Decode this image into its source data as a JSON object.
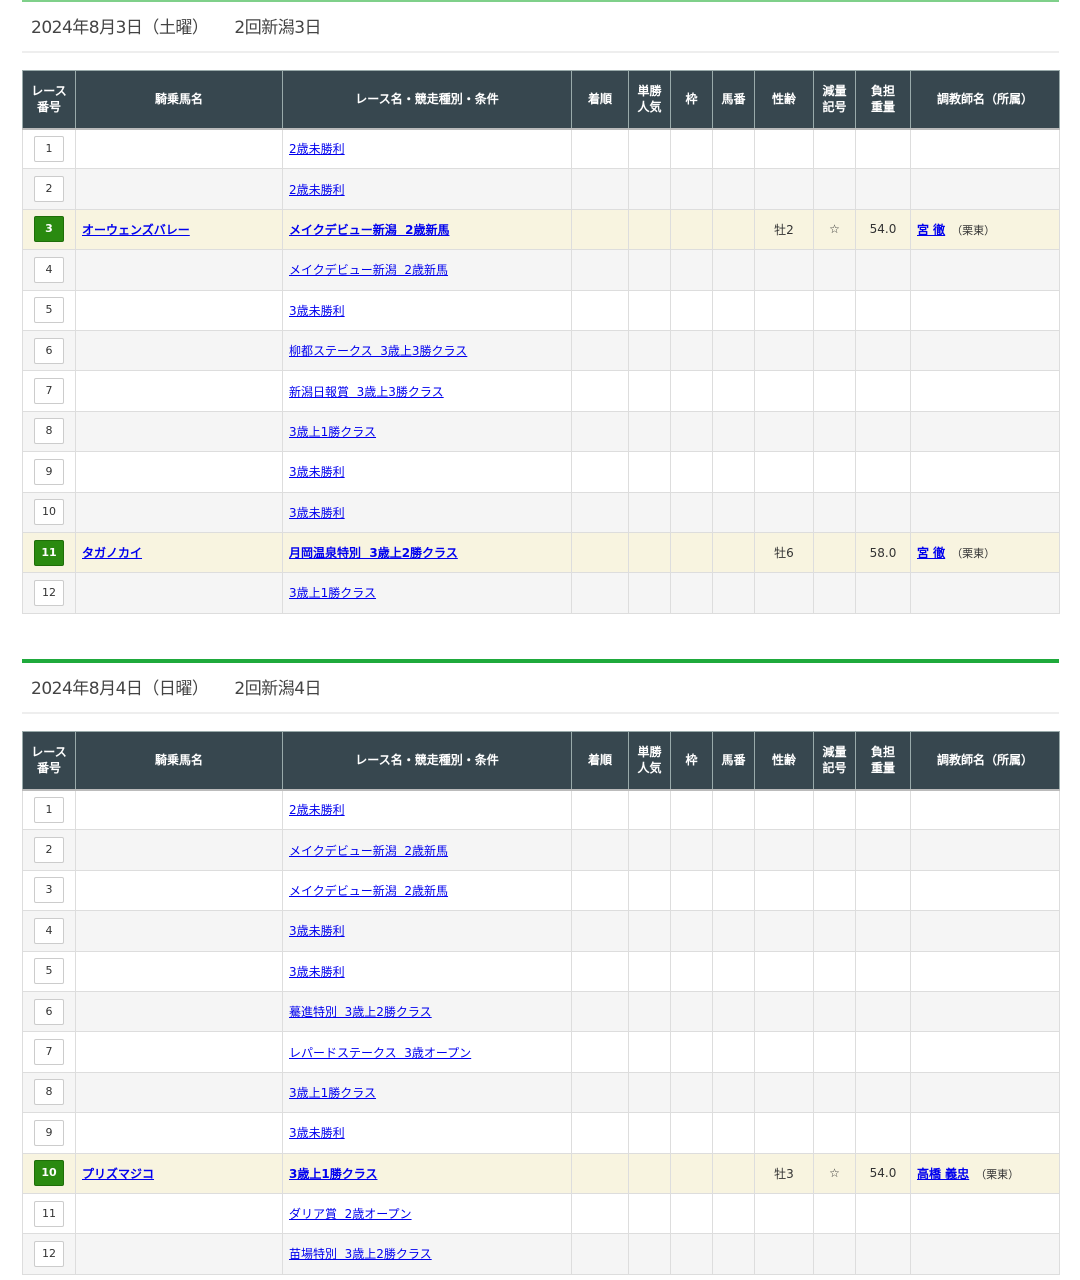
{
  "columns": [
    "レース\n番号",
    "騎乗馬名",
    "レース名・競走種別・条件",
    "着順",
    "単勝\n人気",
    "枠",
    "馬番",
    "性齢",
    "減量\n記号",
    "負担\n重量",
    "調教師名（所属）"
  ],
  "days": [
    {
      "date": "2024年8月3日（土曜）",
      "meeting": "2回新潟3日",
      "races": [
        {
          "no": "1",
          "race": "2歳未勝利"
        },
        {
          "no": "2",
          "race": "2歳未勝利"
        },
        {
          "no": "3",
          "horse": "オーウェンズバレー",
          "race": "メイクデビュー新潟  2歳新馬",
          "sexage": "牡2",
          "mark": "☆",
          "weight": "54.0",
          "trainer": "宮 徹",
          "affil": "（栗東）"
        },
        {
          "no": "4",
          "race": "メイクデビュー新潟  2歳新馬"
        },
        {
          "no": "5",
          "race": "3歳未勝利"
        },
        {
          "no": "6",
          "race": "柳都ステークス  3歳上3勝クラス"
        },
        {
          "no": "7",
          "race": "新潟日報賞  3歳上3勝クラス"
        },
        {
          "no": "8",
          "race": "3歳上1勝クラス"
        },
        {
          "no": "9",
          "race": "3歳未勝利"
        },
        {
          "no": "10",
          "race": "3歳未勝利"
        },
        {
          "no": "11",
          "horse": "タガノカイ",
          "race": "月岡温泉特別  3歳上2勝クラス",
          "sexage": "牡6",
          "mark": "",
          "weight": "58.0",
          "trainer": "宮 徹",
          "affil": "（栗東）"
        },
        {
          "no": "12",
          "race": "3歳上1勝クラス"
        }
      ]
    },
    {
      "date": "2024年8月4日（日曜）",
      "meeting": "2回新潟4日",
      "races": [
        {
          "no": "1",
          "race": "2歳未勝利"
        },
        {
          "no": "2",
          "race": "メイクデビュー新潟  2歳新馬"
        },
        {
          "no": "3",
          "race": "メイクデビュー新潟  2歳新馬"
        },
        {
          "no": "4",
          "race": "3歳未勝利"
        },
        {
          "no": "5",
          "race": "3歳未勝利"
        },
        {
          "no": "6",
          "race": "驀進特別  3歳上2勝クラス"
        },
        {
          "no": "7",
          "race": "レパードステークス  3歳オープン"
        },
        {
          "no": "8",
          "race": "3歳上1勝クラス"
        },
        {
          "no": "9",
          "race": "3歳未勝利"
        },
        {
          "no": "10",
          "horse": "プリズマジコ",
          "race": "3歳上1勝クラス",
          "sexage": "牡3",
          "mark": "☆",
          "weight": "54.0",
          "trainer": "高橋 義忠",
          "affil": "（栗東）"
        },
        {
          "no": "11",
          "race": "ダリア賞  2歳オープン"
        },
        {
          "no": "12",
          "race": "苗場特別  3歳上2勝クラス"
        }
      ]
    }
  ],
  "colors": {
    "header_bg": "#37474f",
    "highlight_row": "#f8f4e0",
    "race_badge_active": "#2a8a10",
    "section_bar": "#1faa3c"
  }
}
